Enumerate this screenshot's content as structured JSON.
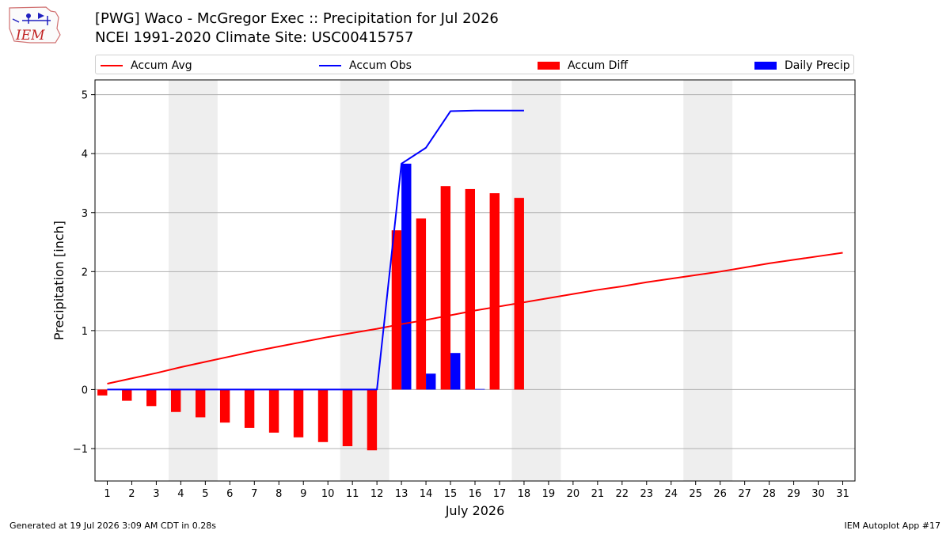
{
  "header": {
    "logo_text": "IEM",
    "title_line1": "[PWG] Waco - McGregor Exec :: Precipitation for Jul 2026",
    "title_line2": "NCEI 1991-2020 Climate Site: USC00415757"
  },
  "footer": {
    "generated": "Generated at 19 Jul 2026 3:09 AM CDT in 0.28s",
    "app": "IEM Autoplot App #17"
  },
  "colors": {
    "accum_avg": "#ff0000",
    "accum_obs": "#0000ff",
    "accum_diff": "#ff0000",
    "daily_precip": "#0000ff",
    "weekend_shade": "#eeeeee",
    "grid": "#b0b0b0"
  },
  "chart_data": {
    "type": "bar",
    "xlabel": "July 2026",
    "ylabel": "Precipitation [inch]",
    "ylim": [
      -1.55,
      5.25
    ],
    "yticks": [
      -1,
      0,
      1,
      2,
      3,
      4,
      5
    ],
    "ytick_labels": [
      "−1",
      "0",
      "1",
      "2",
      "3",
      "4",
      "5"
    ],
    "xlim": [
      0.5,
      31.5
    ],
    "days": [
      1,
      2,
      3,
      4,
      5,
      6,
      7,
      8,
      9,
      10,
      11,
      12,
      13,
      14,
      15,
      16,
      17,
      18,
      19,
      20,
      21,
      22,
      23,
      24,
      25,
      26,
      27,
      28,
      29,
      30,
      31
    ],
    "weekends": [
      [
        4,
        5
      ],
      [
        11,
        12
      ],
      [
        18,
        19
      ],
      [
        25,
        26
      ]
    ],
    "grid": true,
    "legend_position": "top",
    "legend": [
      {
        "key": "accum_avg",
        "label": "Accum Avg",
        "kind": "line"
      },
      {
        "key": "accum_obs",
        "label": "Accum Obs",
        "kind": "line"
      },
      {
        "key": "accum_diff",
        "label": "Accum Diff",
        "kind": "bar"
      },
      {
        "key": "daily_precip",
        "label": "Daily Precip",
        "kind": "bar"
      }
    ],
    "series": {
      "accum_avg": [
        0.1,
        0.19,
        0.28,
        0.38,
        0.47,
        0.56,
        0.65,
        0.73,
        0.81,
        0.89,
        0.96,
        1.03,
        1.11,
        1.18,
        1.26,
        1.34,
        1.41,
        1.48,
        1.55,
        1.62,
        1.69,
        1.75,
        1.82,
        1.88,
        1.94,
        2.0,
        2.07,
        2.14,
        2.2,
        2.26,
        2.32
      ],
      "accum_obs": [
        0,
        0,
        0,
        0,
        0,
        0,
        0,
        0,
        0,
        0,
        0,
        0,
        3.83,
        4.1,
        4.72,
        4.73,
        4.73,
        4.73
      ],
      "accum_diff": [
        -0.1,
        -0.19,
        -0.28,
        -0.38,
        -0.47,
        -0.56,
        -0.65,
        -0.73,
        -0.81,
        -0.89,
        -0.96,
        -1.03,
        2.7,
        2.9,
        3.45,
        3.4,
        3.33,
        3.25
      ],
      "daily_precip": [
        0,
        0,
        0,
        0,
        0,
        0,
        0,
        0,
        0,
        0,
        0,
        0,
        3.83,
        0.27,
        0.62,
        0.01,
        0,
        0
      ]
    }
  }
}
